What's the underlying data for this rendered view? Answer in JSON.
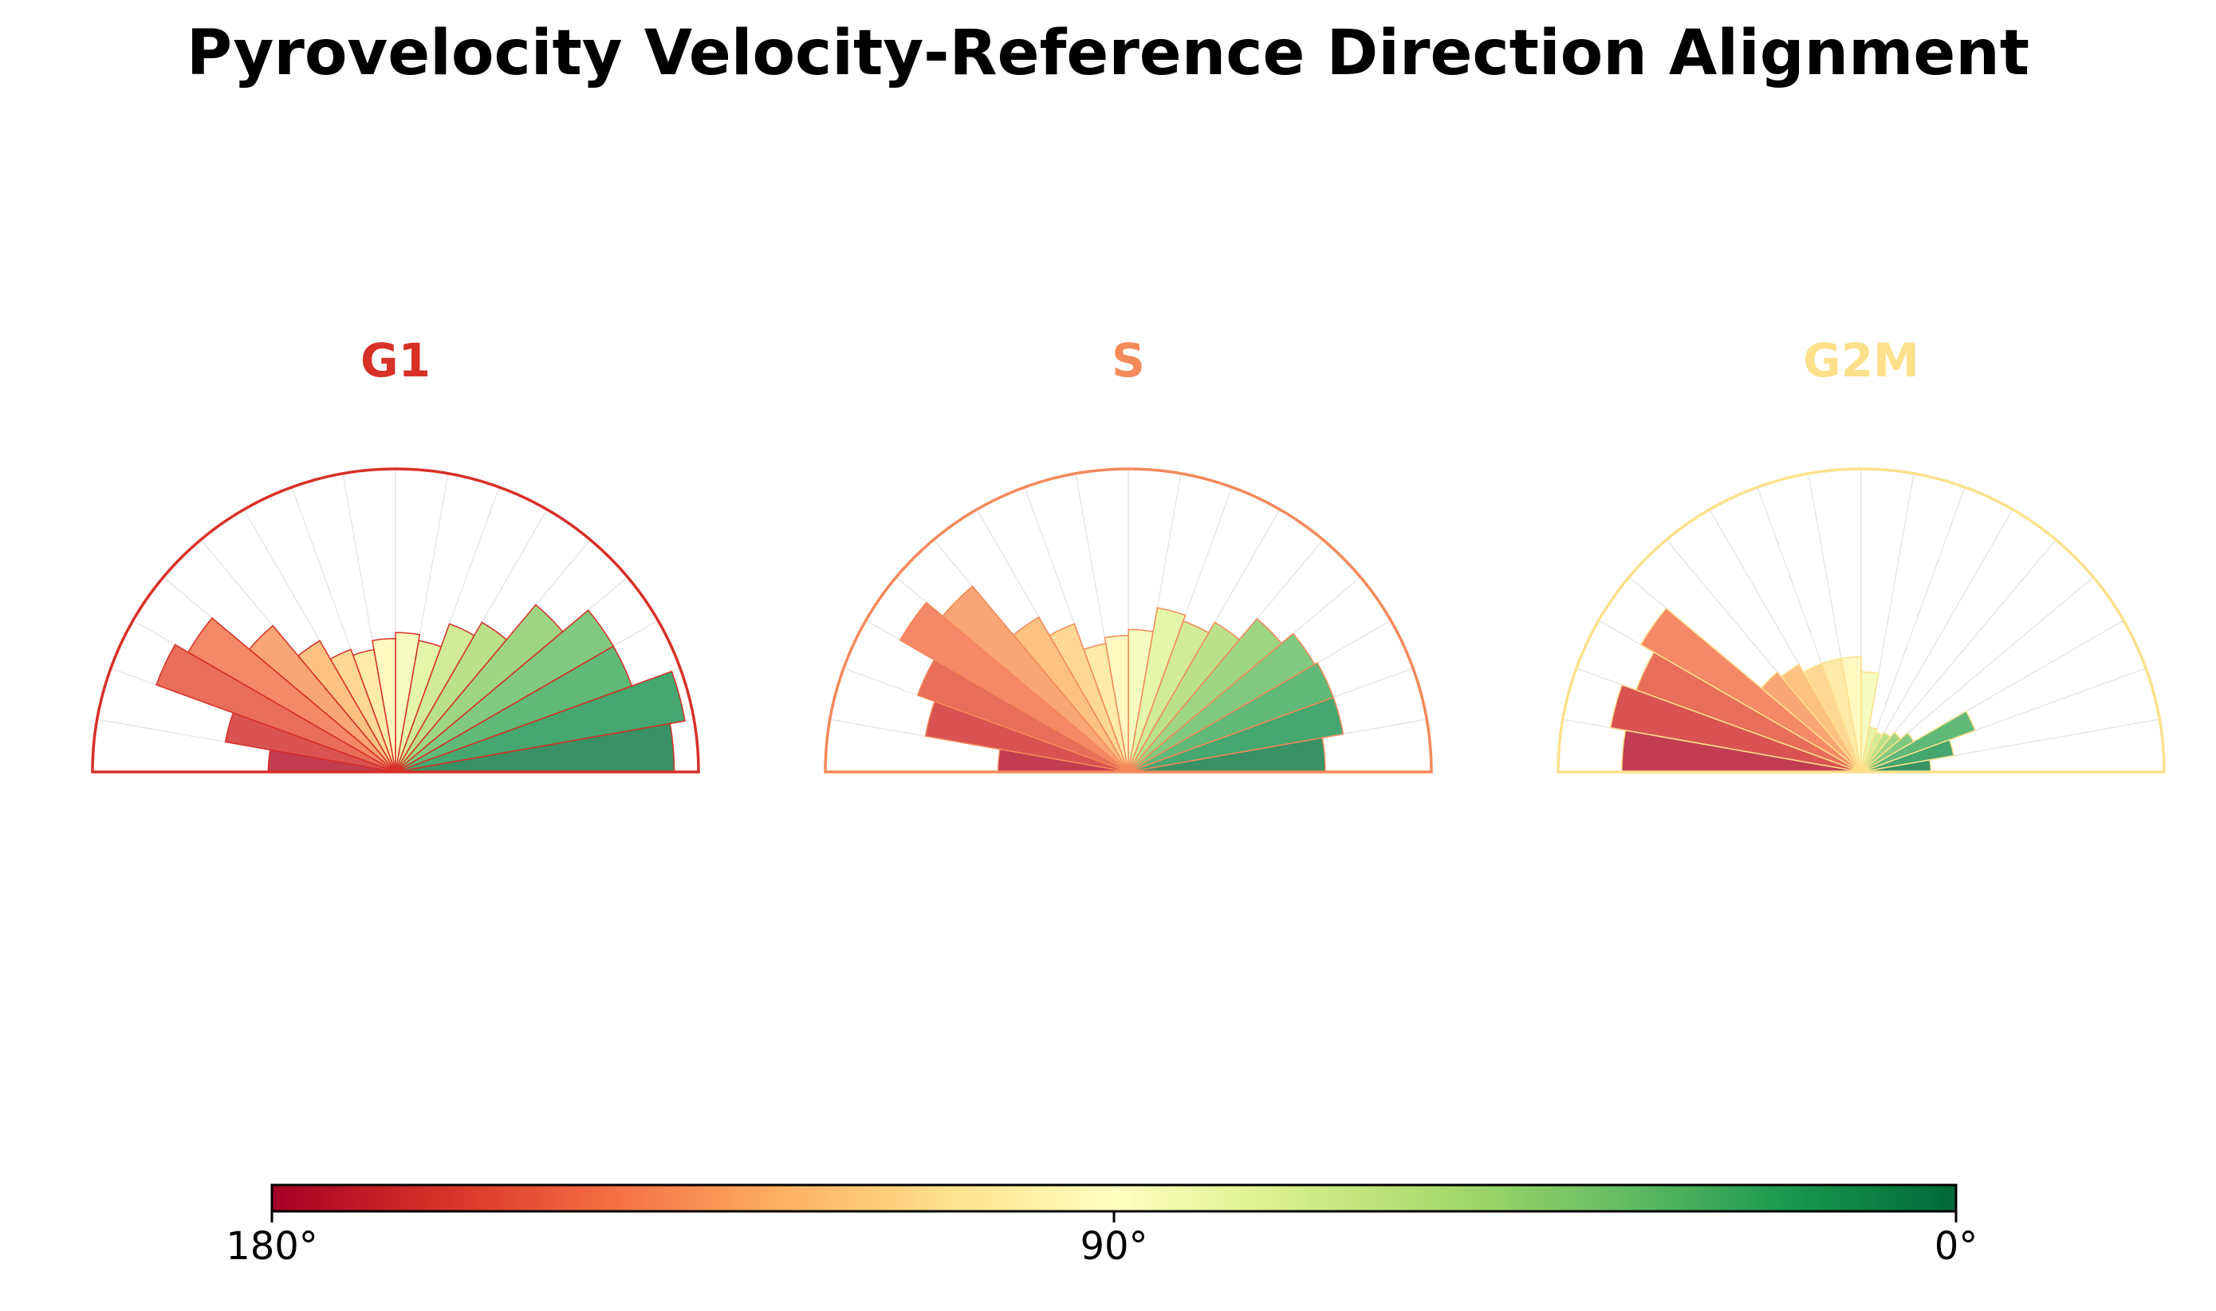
{
  "title": "Pyrovelocity Velocity-Reference Direction Alignment",
  "chart_data": {
    "type": "polar-bar",
    "description_axis": "angle between velocity and reference direction, 0°–180°, 18 bins of 10°",
    "bin_edges_deg": [
      0,
      10,
      20,
      30,
      40,
      50,
      60,
      70,
      80,
      90,
      100,
      110,
      120,
      130,
      140,
      150,
      160,
      170,
      180
    ],
    "radial_max": 1.0,
    "panels": [
      {
        "name": "G1",
        "color": "#d73027",
        "values": [
          0.92,
          0.97,
          0.83,
          0.83,
          0.72,
          0.57,
          0.52,
          0.44,
          0.46,
          0.44,
          0.41,
          0.43,
          0.5,
          0.63,
          0.79,
          0.84,
          0.57,
          0.42
        ]
      },
      {
        "name": "S",
        "color": "#f4895a",
        "values": [
          0.65,
          0.72,
          0.72,
          0.71,
          0.66,
          0.57,
          0.53,
          0.55,
          0.47,
          0.45,
          0.43,
          0.52,
          0.59,
          0.8,
          0.87,
          0.74,
          0.68,
          0.43
        ]
      },
      {
        "name": "G2M",
        "color": "#fee08b",
        "values": [
          0.23,
          0.31,
          0.4,
          0.2,
          0.17,
          0.15,
          0.14,
          0.15,
          0.33,
          0.38,
          0.38,
          0.38,
          0.41,
          0.43,
          0.84,
          0.79,
          0.84,
          0.79
        ]
      }
    ],
    "colorbar": {
      "cmap": "RdYlGn",
      "range_deg": [
        180,
        0
      ],
      "ticks": [
        "180°",
        "90°",
        "0°"
      ]
    }
  }
}
